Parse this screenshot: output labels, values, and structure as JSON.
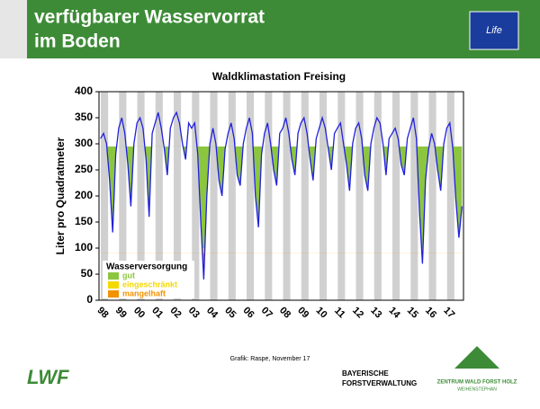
{
  "header": {
    "title_line1": "verfügbarer Wasservorrat",
    "title_line2": "im Boden",
    "logo": "Life"
  },
  "chart_data": {
    "type": "line",
    "title": "Waldklimastation Freising",
    "ylabel": "Liter pro Quadratmeter",
    "categories": [
      "98",
      "99",
      "00",
      "01",
      "02",
      "03",
      "04",
      "05",
      "06",
      "07",
      "08",
      "09",
      "10",
      "11",
      "12",
      "13",
      "14",
      "15",
      "16",
      "17"
    ],
    "color": "#2020dd",
    "values": [
      [
        310,
        320,
        300,
        230,
        130,
        280
      ],
      [
        330,
        350,
        320,
        260,
        180,
        300
      ],
      [
        340,
        350,
        330,
        270,
        160,
        320
      ],
      [
        340,
        360,
        330,
        290,
        240,
        330
      ],
      [
        350,
        360,
        340,
        300,
        270,
        340
      ],
      [
        330,
        340,
        280,
        150,
        40,
        200
      ],
      [
        300,
        330,
        300,
        230,
        200,
        290
      ],
      [
        320,
        340,
        310,
        240,
        220,
        300
      ],
      [
        330,
        350,
        320,
        200,
        140,
        280
      ],
      [
        320,
        340,
        300,
        250,
        220,
        320
      ],
      [
        330,
        350,
        320,
        270,
        240,
        320
      ],
      [
        340,
        350,
        320,
        270,
        230,
        310
      ],
      [
        330,
        350,
        330,
        290,
        250,
        320
      ],
      [
        330,
        340,
        300,
        260,
        210,
        300
      ],
      [
        330,
        340,
        310,
        240,
        210,
        300
      ],
      [
        330,
        350,
        340,
        300,
        240,
        310
      ],
      [
        320,
        330,
        310,
        260,
        240,
        310
      ],
      [
        330,
        350,
        310,
        170,
        70,
        230
      ],
      [
        290,
        320,
        300,
        250,
        210,
        300
      ],
      [
        330,
        340,
        290,
        190,
        120,
        180
      ]
    ],
    "ylim": [
      0,
      400
    ],
    "yticks": [
      0,
      50,
      100,
      150,
      200,
      250,
      300,
      350,
      400
    ],
    "legend": {
      "title": "Wasserversorgung",
      "items": [
        {
          "name": "gut",
          "color": "#8cc63f",
          "upper": 295
        },
        {
          "name": "eingeschränkt",
          "color": "#f5d800",
          "upper": 100
        },
        {
          "name": "mangelhaft",
          "color": "#f39200",
          "upper": 90
        }
      ]
    }
  },
  "footer": {
    "credit": "Grafik: Raspe, November 17",
    "lwf": "LWF",
    "bayern1": "BAYERISCHE",
    "bayern2": "FORSTVERWALTUNG",
    "zentrum": "ZENTRUM WALD FORST HOLZ",
    "weihenstephan": "WEIHENSTEPHAN"
  }
}
